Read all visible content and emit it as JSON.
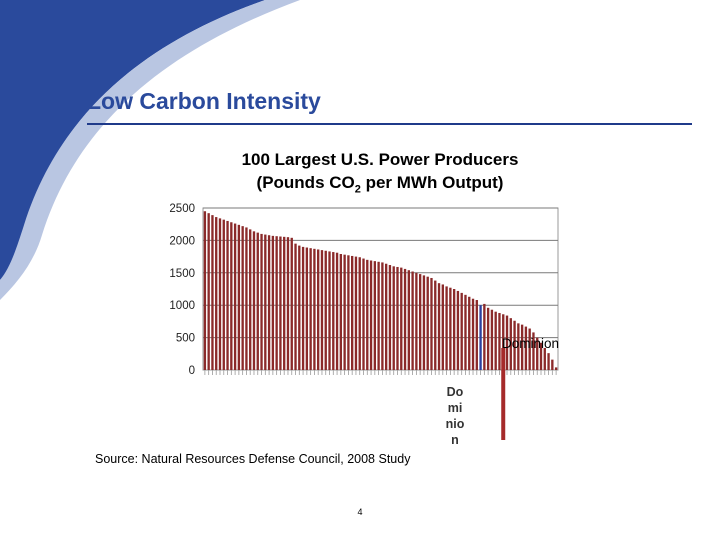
{
  "slide": {
    "title": "Low Carbon Intensity",
    "source": "Source: Natural Resources Defense Council, 2008 Study",
    "page_number": "4"
  },
  "colors": {
    "brand_blue": "#2a4a9c",
    "bar": "#8b2a2a",
    "highlight_bar": "#2b3f9e",
    "callout": "#a52a2a"
  },
  "chart_data": {
    "type": "bar",
    "title_line1": "100 Largest U.S. Power Producers",
    "title_line2_pre": "(Pounds CO",
    "title_line2_sub": "2",
    "title_line2_post": " per MWh Output)",
    "ylim": [
      0,
      2500
    ],
    "yticks": [
      "2500",
      "2000",
      "1500",
      "1000",
      "500",
      "0"
    ],
    "grid": true,
    "highlight_index": 73,
    "highlight_label_right": "Dominion",
    "highlight_label_below": [
      "Do",
      "mi",
      "nio",
      "n"
    ],
    "values": [
      2450,
      2420,
      2390,
      2360,
      2340,
      2320,
      2300,
      2280,
      2260,
      2240,
      2220,
      2200,
      2170,
      2140,
      2120,
      2100,
      2090,
      2080,
      2070,
      2065,
      2060,
      2055,
      2050,
      2040,
      1950,
      1920,
      1900,
      1890,
      1880,
      1870,
      1860,
      1850,
      1840,
      1830,
      1820,
      1810,
      1790,
      1780,
      1770,
      1760,
      1750,
      1740,
      1720,
      1700,
      1690,
      1680,
      1670,
      1660,
      1640,
      1620,
      1600,
      1590,
      1580,
      1560,
      1540,
      1520,
      1500,
      1480,
      1460,
      1440,
      1420,
      1380,
      1340,
      1320,
      1290,
      1270,
      1250,
      1220,
      1190,
      1160,
      1130,
      1100,
      1080,
      1000,
      1020,
      960,
      930,
      900,
      880,
      860,
      840,
      800,
      760,
      720,
      700,
      670,
      640,
      580,
      500,
      420,
      340,
      260,
      160,
      40
    ]
  }
}
